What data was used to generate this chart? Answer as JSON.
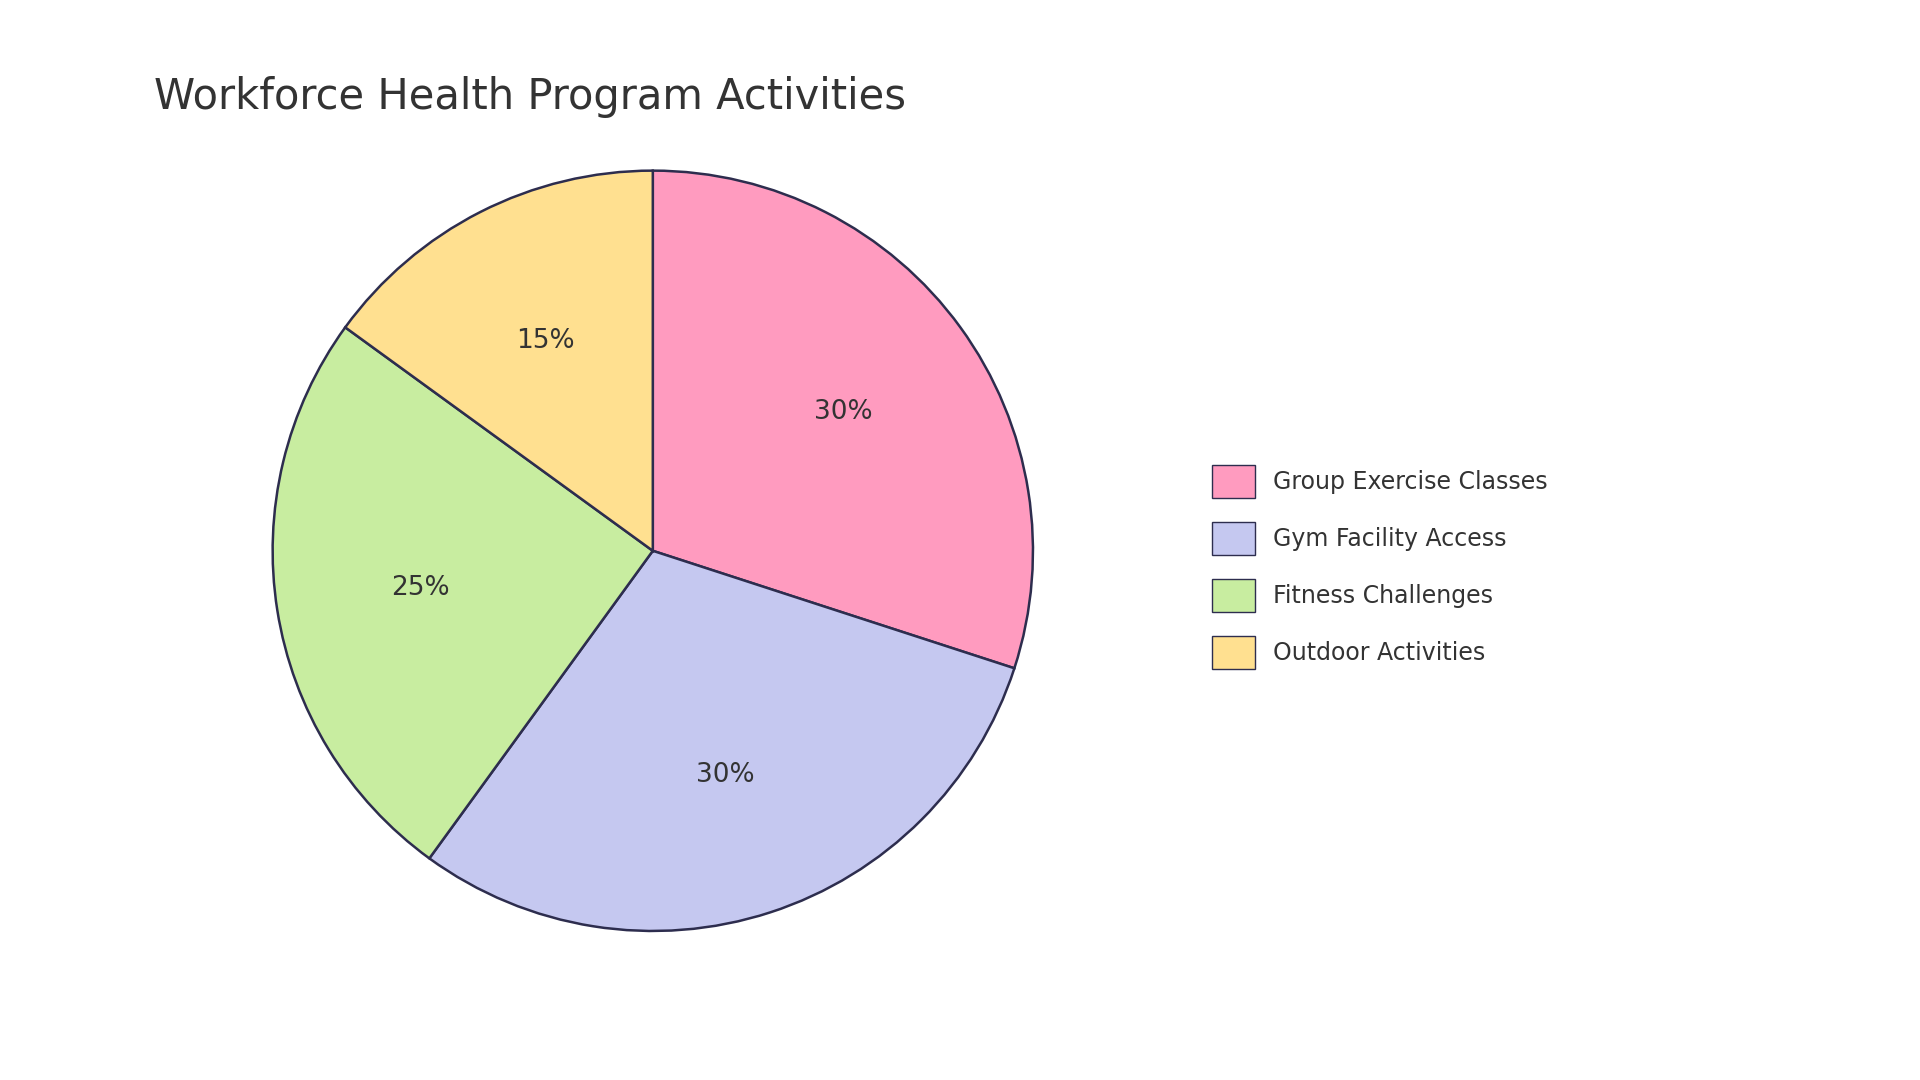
{
  "title": "Workforce Health Program Activities",
  "labels": [
    "Group Exercise Classes",
    "Gym Facility Access",
    "Fitness Challenges",
    "Outdoor Activities"
  ],
  "values": [
    30,
    30,
    25,
    15
  ],
  "colors": [
    "#FF9BBF",
    "#C5C8F0",
    "#C8EDA0",
    "#FFE090"
  ],
  "edge_color": "#2d2d4e",
  "edge_width": 1.8,
  "autopct_labels": [
    "30%",
    "30%",
    "25%",
    "15%"
  ],
  "title_fontsize": 30,
  "autopct_fontsize": 19,
  "legend_fontsize": 17,
  "background_color": "#ffffff",
  "start_angle": 90,
  "text_color": "#333333"
}
